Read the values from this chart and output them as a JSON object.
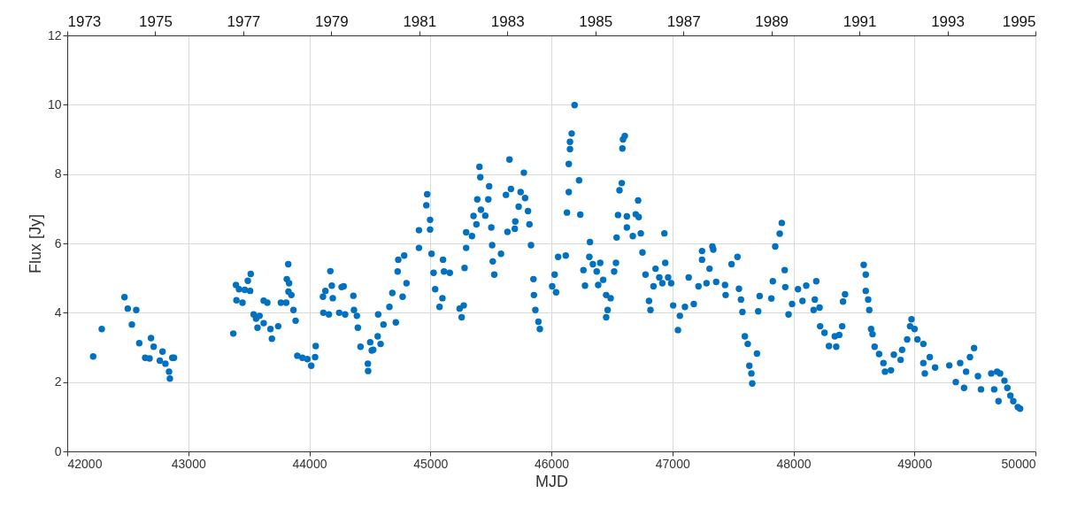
{
  "chart_data": {
    "type": "scatter",
    "xlabel": "MJD",
    "ylabel": "Flux [Jy]",
    "xlim": [
      42000,
      50000
    ],
    "xticks": [
      42000,
      43000,
      44000,
      45000,
      46000,
      47000,
      48000,
      49000,
      50000
    ],
    "ylim": [
      0,
      12
    ],
    "yticks": [
      0,
      2,
      4,
      6,
      8,
      10,
      12
    ],
    "x2lim": [
      1973,
      1995
    ],
    "x2ticks": [
      1973,
      1975,
      1977,
      1979,
      1981,
      1983,
      1985,
      1987,
      1989,
      1991,
      1993,
      1995
    ],
    "grid": true,
    "marker": "circle",
    "series": [
      {
        "color": "#0070c0",
        "x": [
          42214,
          42285,
          42473,
          42500,
          42570,
          42534,
          42595,
          42644,
          42680,
          42692,
          42714,
          42765,
          42787,
          42811,
          42841,
          42848,
          42868,
          42882,
          43372,
          43394,
          43398,
          43419,
          43448,
          43467,
          43492,
          43516,
          43511,
          43540,
          43560,
          43572,
          43589,
          43623,
          43653,
          43623,
          43679,
          43691,
          43743,
          43765,
          43809,
          43826,
          43814,
          43833,
          43828,
          43852,
          43869,
          43887,
          43901,
          43943,
          43984,
          44016,
          44048,
          44053,
          44113,
          44116,
          44133,
          44162,
          44174,
          44186,
          44194,
          44247,
          44267,
          44284,
          44296,
          44364,
          44369,
          44393,
          44401,
          44423,
          44484,
          44486,
          44503,
          44516,
          44565,
          44569,
          44589,
          44613,
          44662,
          44686,
          44715,
          44735,
          44730,
          44771,
          44784,
          44528,
          44803,
          44906,
          44906,
          44967,
          44974,
          44998,
          44998,
          45010,
          45027,
          45040,
          45076,
          45105,
          45113,
          45161,
          45100,
          45242,
          45259,
          45276,
          45283,
          45296,
          45296,
          45344,
          45357,
          45381,
          45406,
          45413,
          45388,
          45418,
          45454,
          45486,
          45479,
          45504,
          45511,
          45516,
          45528,
          45584,
          45625,
          45637,
          45654,
          45666,
          45702,
          45698,
          45730,
          45746,
          45773,
          45783,
          45807,
          45819,
          45832,
          45852,
          45856,
          45868,
          45893,
          45905,
          46007,
          46039,
          46027,
          46056,
          46119,
          46129,
          46144,
          46144,
          46154,
          46154,
          46168,
          46192,
          46229,
          46239,
          46265,
          46278,
          46319,
          46314,
          46343,
          46375,
          46387,
          46404,
          46428,
          46453,
          46490,
          46465,
          46453,
          46519,
          46534,
          46539,
          46551,
          46563,
          46582,
          46587,
          46592,
          46607,
          46624,
          46624,
          46673,
          46697,
          46717,
          46722,
          46739,
          46753,
          46778,
          46807,
          46819,
          46844,
          46861,
          46892,
          46917,
          46934,
          46941,
          46965,
          46990,
          47007,
          47046,
          47062,
          47104,
          47135,
          47177,
          47216,
          47245,
          47245,
          47282,
          47307,
          47338,
          47362,
          47435,
          47331,
          47440,
          47489,
          47538,
          47550,
          47567,
          47579,
          47599,
          47623,
          47636,
          47653,
          47660,
          47699,
          47709,
          47721,
          47818,
          47830,
          47850,
          47887,
          47904,
          47928,
          47933,
          47960,
          47989,
          48038,
          48075,
          48106,
          48167,
          48177,
          48189,
          48216,
          48221,
          48257,
          48294,
          48354,
          48342,
          48379,
          48403,
          48410,
          48427,
          48581,
          48598,
          48598,
          48618,
          48627,
          48642,
          48654,
          48671,
          48708,
          48744,
          48757,
          48806,
          48830,
          48886,
          48898,
          48940,
          48964,
          48976,
          49001,
          49025,
          49074,
          49074,
          49086,
          49127,
          49171,
          49288,
          49342,
          49378,
          49410,
          49427,
          49459,
          49493,
          49525,
          49550,
          49635,
          49659,
          49683,
          49695,
          49708,
          49744,
          49768,
          49793,
          49817,
          49854,
          49873
        ],
        "values": [
          2.74,
          3.53,
          4.45,
          4.12,
          4.08,
          3.66,
          3.12,
          2.7,
          2.68,
          3.27,
          3.02,
          2.62,
          2.88,
          2.53,
          2.3,
          2.1,
          2.7,
          2.7,
          3.4,
          4.8,
          4.36,
          4.68,
          4.29,
          4.66,
          4.92,
          5.12,
          4.63,
          3.95,
          3.83,
          3.57,
          3.91,
          4.35,
          4.29,
          3.7,
          3.53,
          3.25,
          3.61,
          4.29,
          4.29,
          5.4,
          4.97,
          4.85,
          4.61,
          4.51,
          4.08,
          3.77,
          2.76,
          2.7,
          2.66,
          2.47,
          2.72,
          3.04,
          4.46,
          4.0,
          4.63,
          3.95,
          5.2,
          4.78,
          4.42,
          4.0,
          4.74,
          4.76,
          3.95,
          4.49,
          4.08,
          3.91,
          3.57,
          3.02,
          2.53,
          2.32,
          3.15,
          2.91,
          3.32,
          3.95,
          3.1,
          3.66,
          4.17,
          4.57,
          3.72,
          5.53,
          5.19,
          4.46,
          5.65,
          2.93,
          4.85,
          6.38,
          5.87,
          7.1,
          7.42,
          6.68,
          6.4,
          5.7,
          5.15,
          4.68,
          4.17,
          5.53,
          5.19,
          5.15,
          4.42,
          4.12,
          3.87,
          4.21,
          5.29,
          6.32,
          5.87,
          6.21,
          6.79,
          6.55,
          8.21,
          7.91,
          7.27,
          6.97,
          6.8,
          7.65,
          7.27,
          6.46,
          5.95,
          5.48,
          5.1,
          5.7,
          7.4,
          6.33,
          8.42,
          7.57,
          6.63,
          6.42,
          7.06,
          7.48,
          8.04,
          7.31,
          6.93,
          6.55,
          5.95,
          4.97,
          4.51,
          4.08,
          3.74,
          3.53,
          4.76,
          4.59,
          5.1,
          5.61,
          5.65,
          6.89,
          7.48,
          8.29,
          8.72,
          8.93,
          9.17,
          9.99,
          7.82,
          6.83,
          5.23,
          4.78,
          6.04,
          5.61,
          5.4,
          5.19,
          4.8,
          5.44,
          4.95,
          4.51,
          4.42,
          4.08,
          3.87,
          5.19,
          5.44,
          6.17,
          6.82,
          7.53,
          7.74,
          8.74,
          9.0,
          9.1,
          6.78,
          6.46,
          6.21,
          6.84,
          7.24,
          6.76,
          6.29,
          5.74,
          5.1,
          4.34,
          4.08,
          4.76,
          5.27,
          5.02,
          4.85,
          6.29,
          5.44,
          5.02,
          4.85,
          4.21,
          3.5,
          3.91,
          4.17,
          5.02,
          4.25,
          4.76,
          5.78,
          5.53,
          4.85,
          5.27,
          5.82,
          4.89,
          4.8,
          5.91,
          4.51,
          5.4,
          5.61,
          4.69,
          4.38,
          4.02,
          3.32,
          3.1,
          2.47,
          2.25,
          1.96,
          2.82,
          4.04,
          4.48,
          4.41,
          4.91,
          5.91,
          6.28,
          6.59,
          5.23,
          4.74,
          3.95,
          4.25,
          4.68,
          4.34,
          4.78,
          4.08,
          4.38,
          4.91,
          4.15,
          3.61,
          3.42,
          3.04,
          3.02,
          3.32,
          3.36,
          3.61,
          4.32,
          4.53,
          5.38,
          5.1,
          4.63,
          4.38,
          4.08,
          3.53,
          3.38,
          3.02,
          2.81,
          2.55,
          2.3,
          2.34,
          2.79,
          2.64,
          2.93,
          3.23,
          3.61,
          3.81,
          3.53,
          3.23,
          3.1,
          2.55,
          2.25,
          2.72,
          2.42,
          2.48,
          2.0,
          2.55,
          1.83,
          2.3,
          2.72,
          2.98,
          2.17,
          1.79,
          2.25,
          1.79,
          2.3,
          1.45,
          2.25,
          2.04,
          1.83,
          1.61,
          1.45,
          1.28,
          1.23
        ]
      }
    ]
  }
}
